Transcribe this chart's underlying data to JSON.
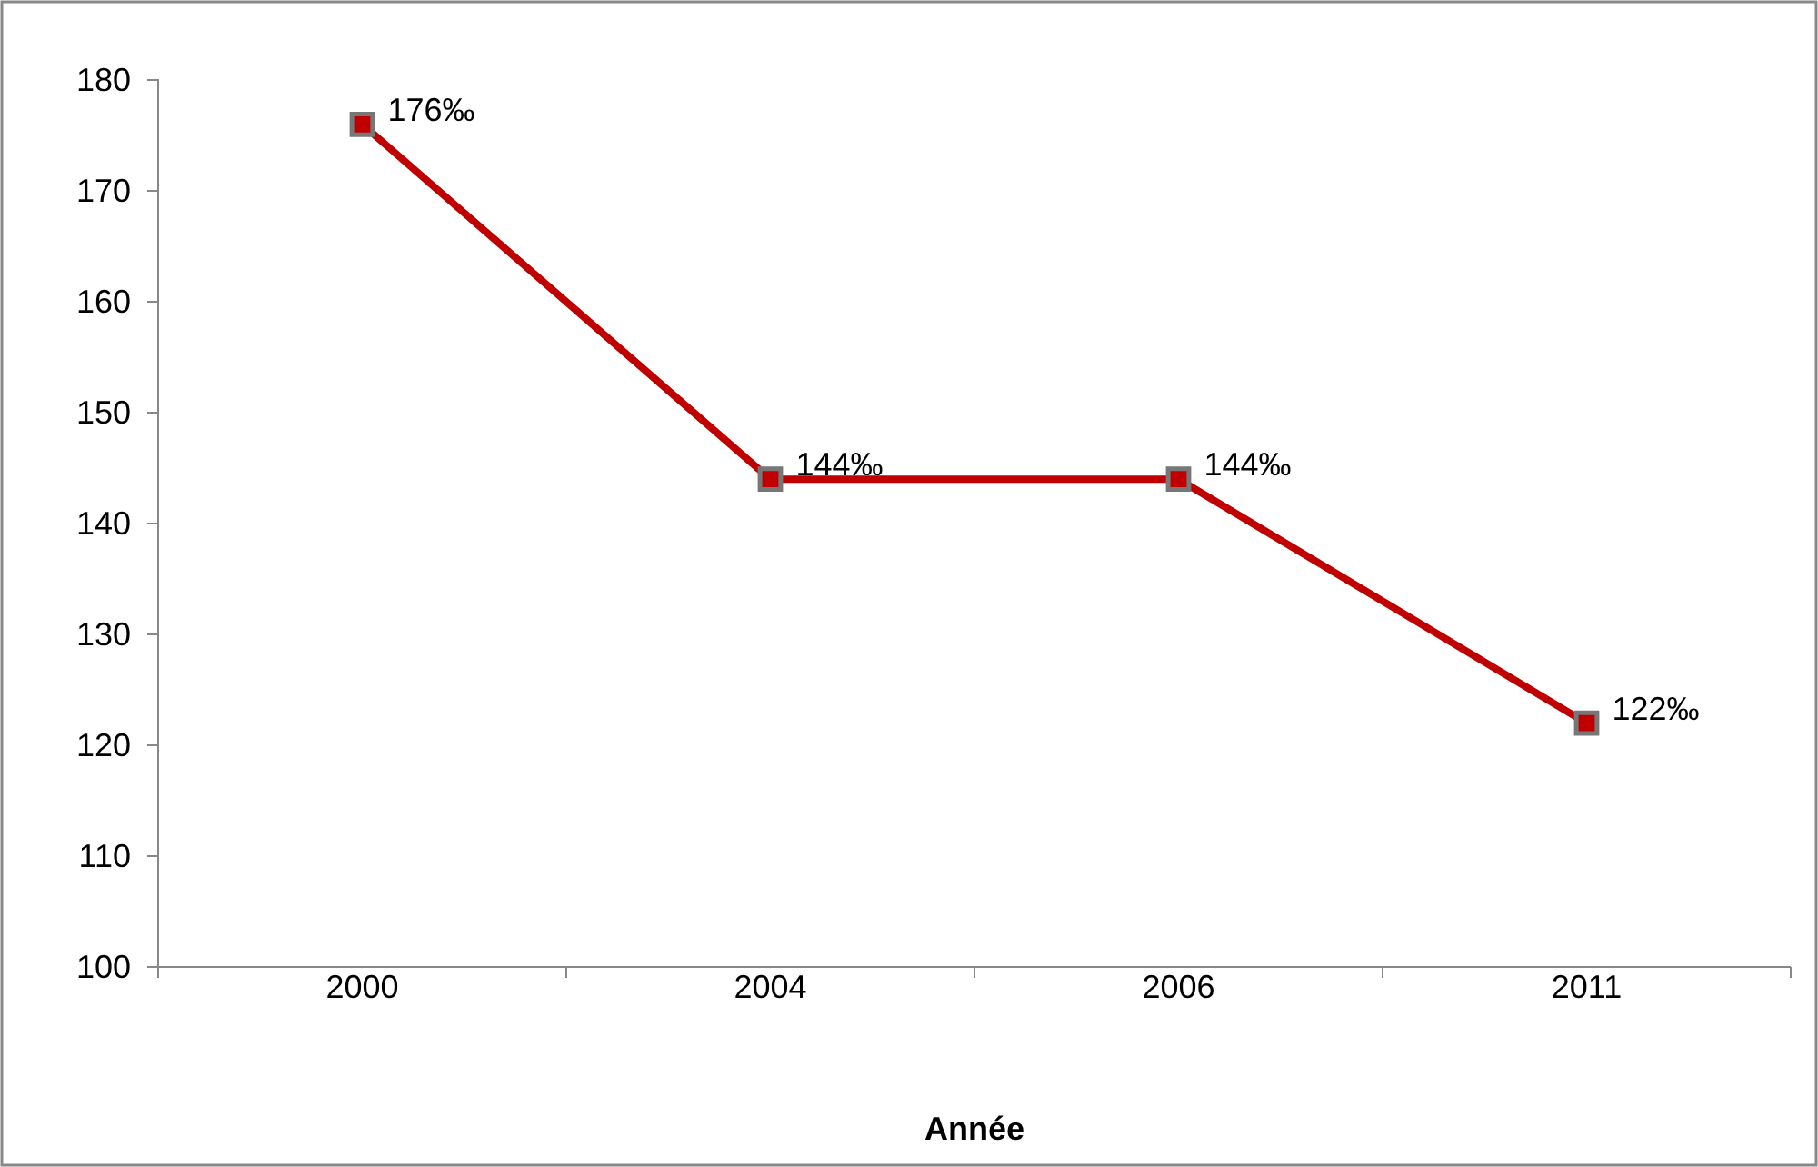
{
  "chart_data": {
    "type": "line",
    "xlabel": "Année",
    "categories": [
      "2000",
      "2004",
      "2006",
      "2011"
    ],
    "series": [
      {
        "color": "#c00000",
        "values": [
          176,
          144,
          144,
          122
        ],
        "value_labels": [
          "176‰",
          "144‰",
          "144‰",
          "122‰"
        ]
      }
    ],
    "ylim": [
      100,
      180
    ],
    "yticks": [
      100,
      110,
      120,
      130,
      140,
      150,
      160,
      170,
      180
    ],
    "grid": false,
    "marker": "square",
    "line_style": "solid"
  }
}
